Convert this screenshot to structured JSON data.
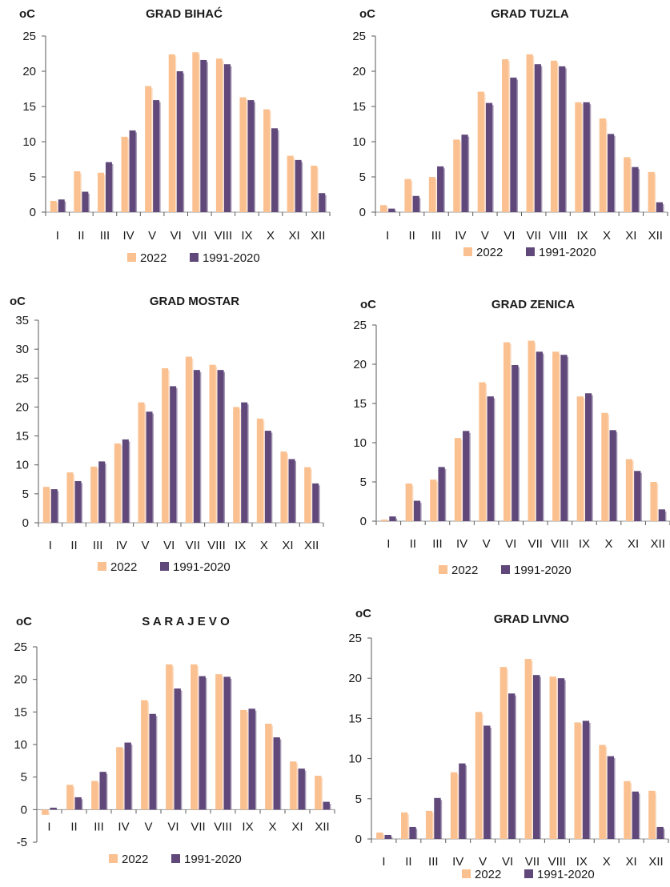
{
  "colors": {
    "series_2022": "#fac090",
    "series_normal": "#60497a"
  },
  "chart_data": [
    {
      "type": "bar",
      "title": "GRAD BIHAĆ",
      "unit_label": "oC",
      "categories": [
        "I",
        "II",
        "III",
        "IV",
        "V",
        "VI",
        "VII",
        "VIII",
        "IX",
        "X",
        "XI",
        "XII"
      ],
      "ylim": [
        0,
        25
      ],
      "yticks": [
        0,
        5,
        10,
        15,
        20,
        25
      ],
      "series": [
        {
          "name": "2022",
          "values": [
            1.6,
            5.8,
            5.6,
            10.7,
            17.9,
            22.4,
            22.7,
            21.8,
            16.3,
            14.6,
            8.0,
            6.6
          ]
        },
        {
          "name": "1991-2020",
          "values": [
            1.8,
            2.9,
            7.1,
            11.6,
            15.9,
            20.0,
            21.6,
            21.0,
            15.9,
            11.9,
            7.4,
            2.7
          ]
        }
      ]
    },
    {
      "type": "bar",
      "title": "GRAD TUZLA",
      "unit_label": "oC",
      "categories": [
        "I",
        "II",
        "III",
        "IV",
        "V",
        "VI",
        "VII",
        "VIII",
        "IX",
        "X",
        "XI",
        "XII"
      ],
      "ylim": [
        0,
        25
      ],
      "yticks": [
        0,
        5,
        10,
        15,
        20,
        25
      ],
      "series": [
        {
          "name": "2022",
          "values": [
            1.0,
            4.7,
            5.0,
            10.3,
            17.1,
            21.7,
            22.4,
            21.5,
            15.6,
            13.3,
            7.8,
            5.7
          ]
        },
        {
          "name": "1991-2020",
          "values": [
            0.5,
            2.3,
            6.5,
            11.0,
            15.5,
            19.1,
            21.0,
            20.7,
            15.6,
            11.1,
            6.4,
            1.4
          ]
        }
      ]
    },
    {
      "type": "bar",
      "title": "GRAD MOSTAR",
      "unit_label": "oC",
      "categories": [
        "I",
        "II",
        "III",
        "IV",
        "V",
        "VI",
        "VII",
        "VIII",
        "IX",
        "X",
        "XI",
        "XII"
      ],
      "ylim": [
        0,
        35
      ],
      "yticks": [
        0,
        5,
        10,
        15,
        20,
        25,
        30,
        35
      ],
      "series": [
        {
          "name": "2022",
          "values": [
            6.2,
            8.7,
            9.7,
            13.7,
            20.8,
            26.7,
            28.7,
            27.3,
            20.0,
            18.0,
            12.3,
            9.6
          ]
        },
        {
          "name": "1991-2020",
          "values": [
            5.8,
            7.2,
            10.6,
            14.4,
            19.2,
            23.6,
            26.4,
            26.4,
            20.8,
            15.9,
            11.0,
            6.8
          ]
        }
      ]
    },
    {
      "type": "bar",
      "title": "GRAD ZENICA",
      "unit_label": "oC",
      "categories": [
        "I",
        "II",
        "III",
        "IV",
        "V",
        "VI",
        "VII",
        "VIII",
        "IX",
        "X",
        "XI",
        "XII"
      ],
      "ylim": [
        0,
        25
      ],
      "yticks": [
        0,
        5,
        10,
        15,
        20,
        25
      ],
      "series": [
        {
          "name": "2022",
          "values": [
            0.2,
            4.8,
            5.3,
            10.6,
            17.7,
            22.8,
            23.0,
            21.6,
            15.9,
            13.8,
            7.9,
            5.0
          ]
        },
        {
          "name": "1991-2020",
          "values": [
            0.6,
            2.6,
            6.9,
            11.5,
            15.9,
            19.9,
            21.6,
            21.2,
            16.3,
            11.6,
            6.4,
            1.5
          ]
        }
      ]
    },
    {
      "type": "bar",
      "title": "S A R A J E V O",
      "unit_label": "oC",
      "categories": [
        "I",
        "II",
        "III",
        "IV",
        "V",
        "VI",
        "VII",
        "VIII",
        "IX",
        "X",
        "XI",
        "XII"
      ],
      "ylim": [
        -5,
        25
      ],
      "yticks": [
        -5,
        0,
        5,
        10,
        15,
        20,
        25
      ],
      "series": [
        {
          "name": "2022",
          "values": [
            -0.8,
            3.8,
            4.4,
            9.6,
            16.8,
            22.3,
            22.3,
            20.8,
            15.3,
            13.2,
            7.4,
            5.2
          ]
        },
        {
          "name": "1991-2020",
          "values": [
            0.3,
            1.9,
            5.8,
            10.3,
            14.7,
            18.6,
            20.5,
            20.4,
            15.5,
            11.1,
            6.3,
            1.2
          ]
        }
      ]
    },
    {
      "type": "bar",
      "title": "GRAD LIVNO",
      "unit_label": "oC",
      "categories": [
        "I",
        "II",
        "III",
        "IV",
        "V",
        "VI",
        "VII",
        "VIII",
        "IX",
        "X",
        "XI",
        "XII"
      ],
      "ylim": [
        0,
        25
      ],
      "yticks": [
        0,
        5,
        10,
        15,
        20,
        25
      ],
      "series": [
        {
          "name": "2022",
          "values": [
            0.8,
            3.3,
            3.5,
            8.3,
            15.8,
            21.4,
            22.4,
            20.2,
            14.5,
            11.7,
            7.2,
            6.0
          ]
        },
        {
          "name": "1991-2020",
          "values": [
            0.5,
            1.5,
            5.1,
            9.4,
            14.1,
            18.1,
            20.4,
            20.0,
            14.7,
            10.3,
            5.9,
            1.5
          ]
        }
      ]
    }
  ]
}
